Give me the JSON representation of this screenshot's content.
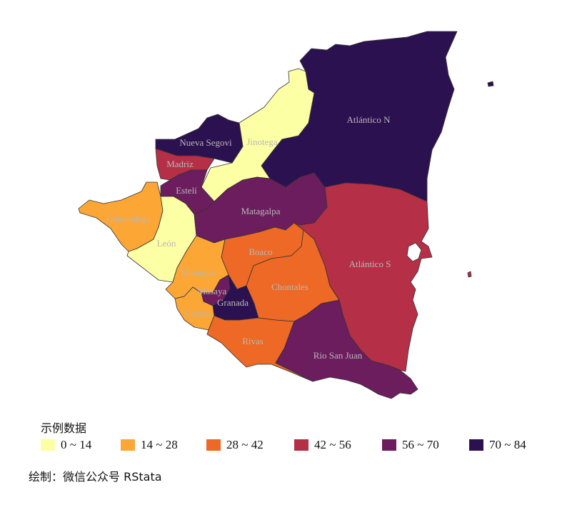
{
  "legend": {
    "title": "示例数据",
    "items": [
      {
        "label": "0 ~ 14",
        "color": "#fcffa4"
      },
      {
        "label": "14 ~ 28",
        "color": "#fca636"
      },
      {
        "label": "28 ~ 42",
        "color": "#ed6925"
      },
      {
        "label": "42 ~ 56",
        "color": "#b52f46"
      },
      {
        "label": "56 ~ 70",
        "color": "#6b1d5e"
      },
      {
        "label": "70 ~ 84",
        "color": "#2c1150"
      }
    ]
  },
  "caption": "绘制：微信公众号 RStata",
  "regions": [
    {
      "id": "nueva-segovia",
      "name": "Nueva Segovi",
      "bin": 5
    },
    {
      "id": "jinotega",
      "name": "Jinotega",
      "bin": 0
    },
    {
      "id": "atlantico-n",
      "name": "Atlántico N",
      "bin": 5
    },
    {
      "id": "madriz",
      "name": "Madriz",
      "bin": 3
    },
    {
      "id": "esteli",
      "name": "Estelí",
      "bin": 4
    },
    {
      "id": "chinandega",
      "name": "Chinandega",
      "bin": 1
    },
    {
      "id": "leon",
      "name": "León",
      "bin": 0
    },
    {
      "id": "matagalpa",
      "name": "Matagalpa",
      "bin": 4
    },
    {
      "id": "boaco",
      "name": "Boaco",
      "bin": 2
    },
    {
      "id": "managua",
      "name": "Managua",
      "bin": 1
    },
    {
      "id": "masaya",
      "name": "Masaya",
      "bin": 4
    },
    {
      "id": "granada",
      "name": "Granada",
      "bin": 5
    },
    {
      "id": "carazo",
      "name": "Carazo",
      "bin": 1
    },
    {
      "id": "chontales",
      "name": "Chontales",
      "bin": 2
    },
    {
      "id": "rivas",
      "name": "Rivas",
      "bin": 2
    },
    {
      "id": "rio-san-juan",
      "name": "Rio San Juan",
      "bin": 4
    },
    {
      "id": "atlantico-s",
      "name": "Atlántico S",
      "bin": 3
    }
  ]
}
